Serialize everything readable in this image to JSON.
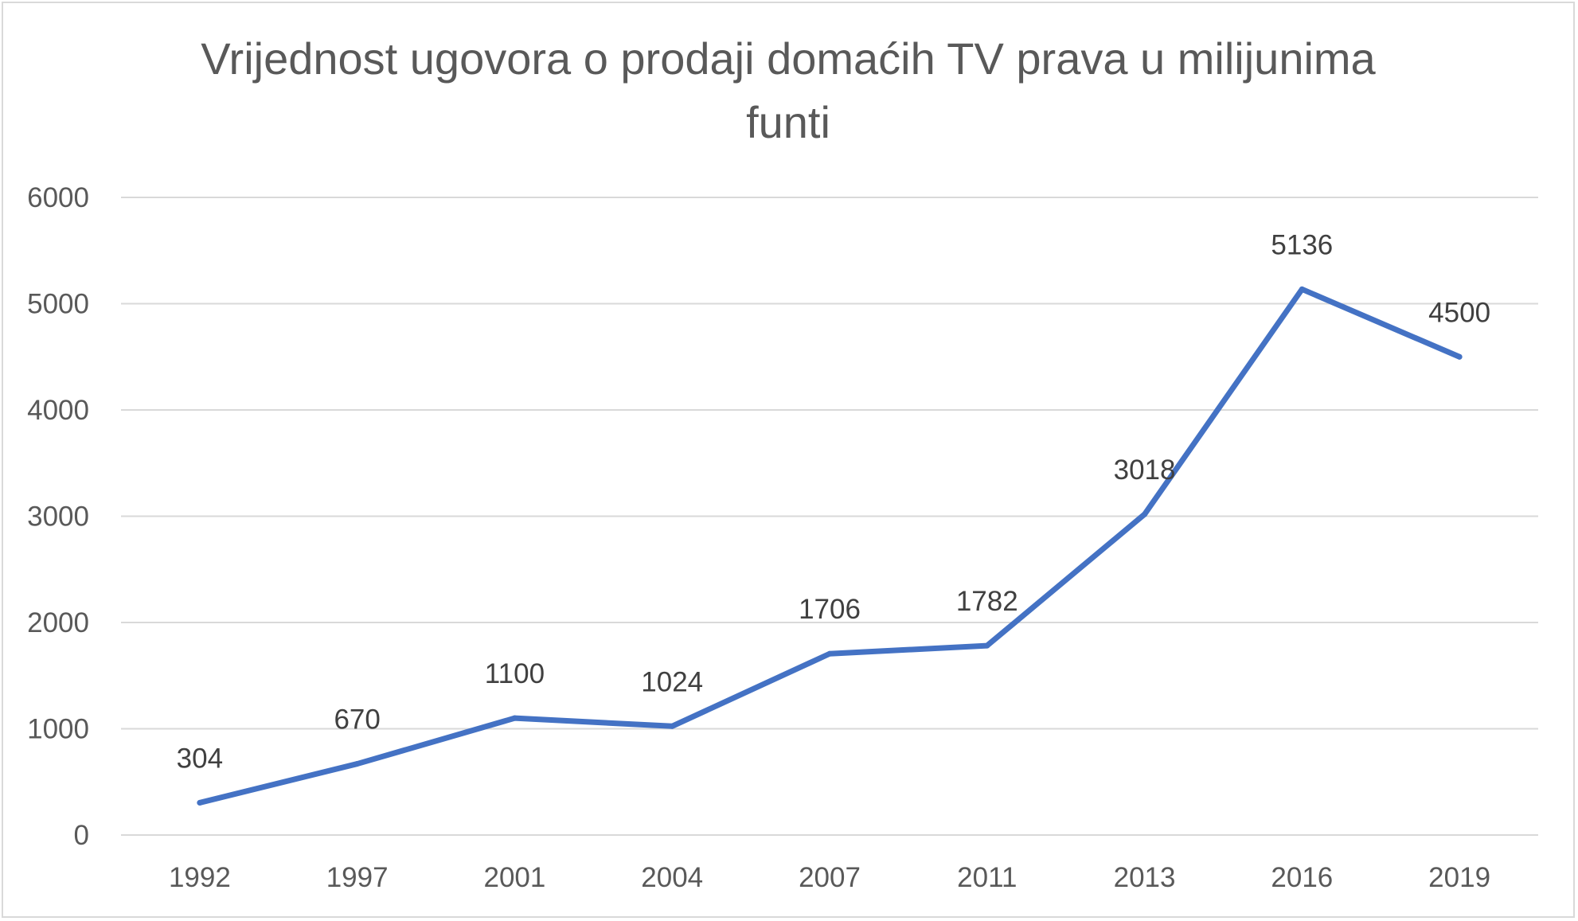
{
  "chart_data": {
    "type": "line",
    "title": "Vrijednost ugovora o prodaji domaćih TV prava u milijunima funti",
    "title_lines": [
      "Vrijednost ugovora o prodaji domaćih TV prava u milijunima",
      "funti"
    ],
    "categories": [
      "1992",
      "1997",
      "2001",
      "2004",
      "2007",
      "2011",
      "2013",
      "2016",
      "2019"
    ],
    "series": [
      {
        "values": [
          304,
          670,
          1100,
          1024,
          1706,
          1782,
          3018,
          5136,
          4500
        ],
        "color": "#4472c4"
      }
    ],
    "data_labels": [
      "304",
      "670",
      "1100",
      "1024",
      "1706",
      "1782",
      "3018",
      "5136",
      "4500"
    ],
    "y_ticks": [
      "0",
      "1000",
      "2000",
      "3000",
      "4000",
      "5000",
      "6000"
    ],
    "ylim": [
      0,
      6000
    ],
    "xlabel": "",
    "ylabel": "",
    "grid": true,
    "legend": "none"
  }
}
